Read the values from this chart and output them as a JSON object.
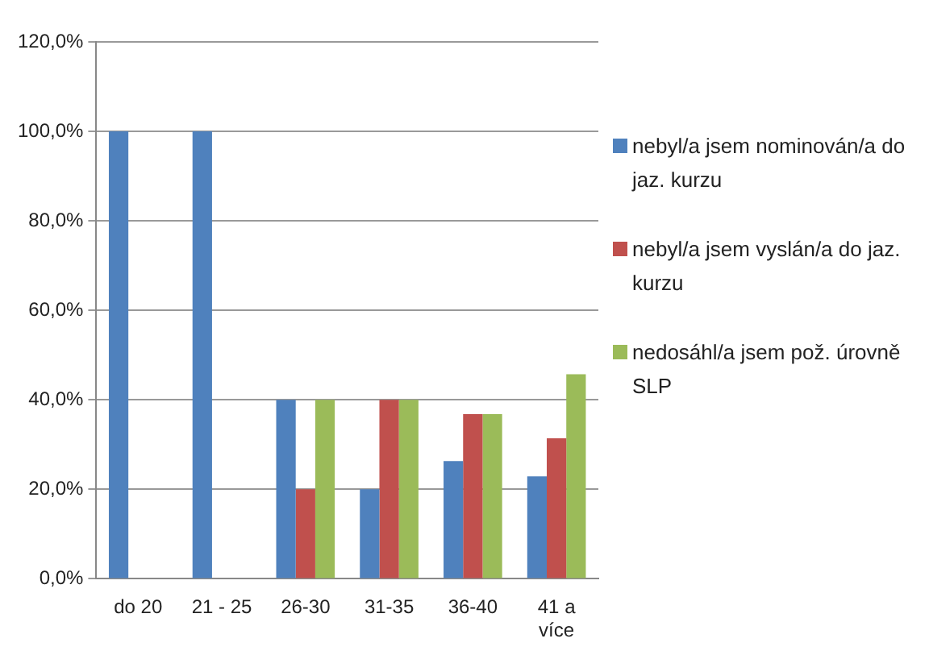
{
  "chart_data": {
    "type": "bar",
    "categories": [
      "do 20",
      "21 - 25",
      "26-30",
      "31-35",
      "36-40",
      "41 a více"
    ],
    "series": [
      {
        "name": "nebyl/a jsem nominován/a do jaz. kurzu",
        "color": "#4f81bd",
        "values": [
          100,
          100,
          40,
          20,
          26.3,
          22.9
        ]
      },
      {
        "name": "nebyl/a jsem vyslán/a do jaz. kurzu",
        "color": "#c0504d",
        "values": [
          0,
          0,
          20,
          40,
          36.8,
          31.4
        ]
      },
      {
        "name": "nedosáhl/a jsem pož. úrovně SLP",
        "color": "#9bbb59",
        "values": [
          0,
          0,
          40,
          40,
          36.8,
          45.7
        ]
      }
    ],
    "ylim": [
      0,
      120
    ],
    "yticks": [
      {
        "value": 0,
        "label": "0,0%"
      },
      {
        "value": 20,
        "label": "20,0%"
      },
      {
        "value": 40,
        "label": "40,0%"
      },
      {
        "value": 60,
        "label": "60,0%"
      },
      {
        "value": 80,
        "label": "80,0%"
      },
      {
        "value": 100,
        "label": "100,0%"
      },
      {
        "value": 120,
        "label": "120,0%"
      }
    ],
    "grid": "y",
    "legend": "right"
  }
}
